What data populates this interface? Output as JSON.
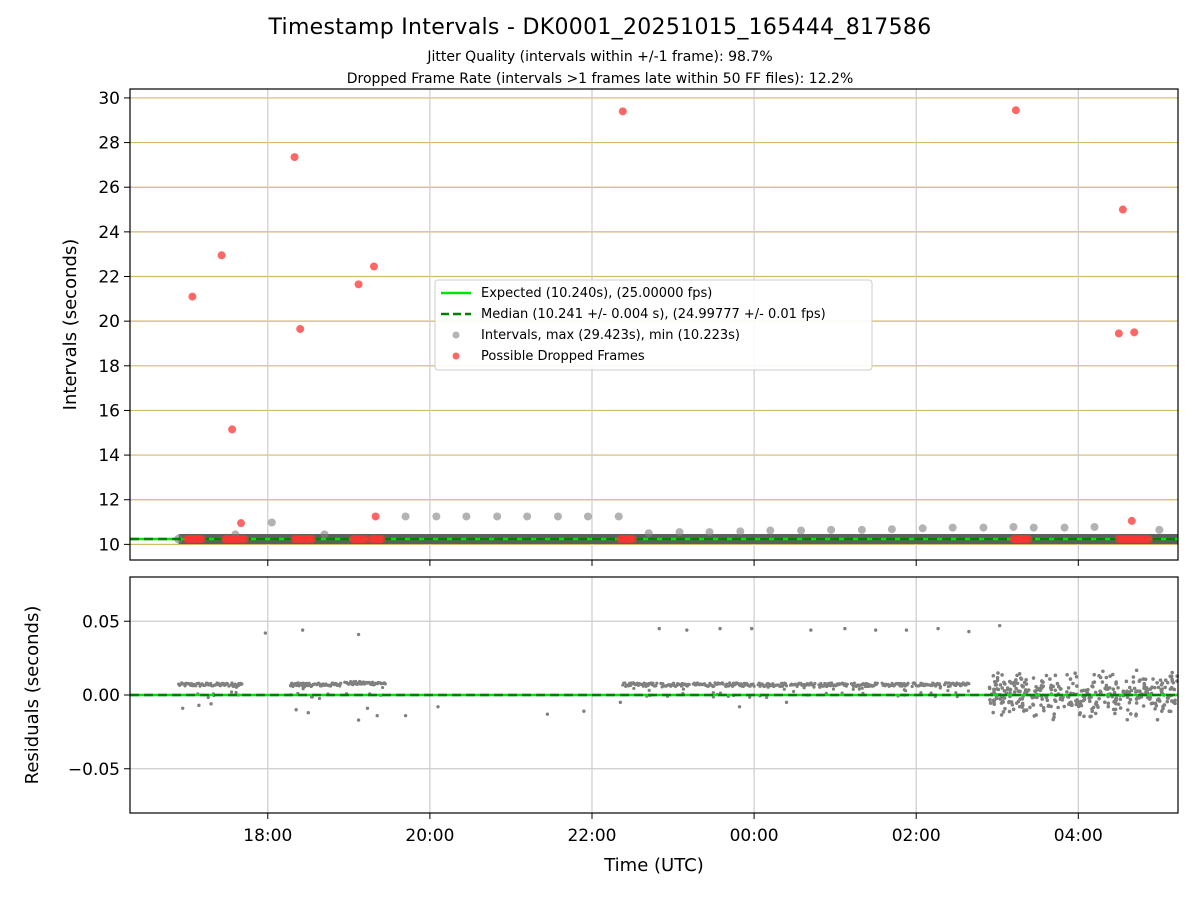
{
  "figure": {
    "title": "Timestamp Intervals - DK0001_20251015_165444_817586",
    "subtitle_jitter": "Jitter Quality (intervals within +/-1 frame): 98.7%",
    "subtitle_dropped": "Dropped Frame Rate (intervals >1 frames late within 50 FF files): 12.2%"
  },
  "colors": {
    "expected": "#00e600",
    "median": "#008000",
    "intervals": "#808080",
    "dropped": "#ff3333",
    "band": "#555555",
    "hgrid_top": "#d4b96a",
    "grid": "#cccccc"
  },
  "chart_data": [
    {
      "type": "scatter",
      "title": "",
      "xlabel": "",
      "ylabel": "Intervals (seconds)",
      "xlim_hours": [
        16.3,
        29.23
      ],
      "ylim": [
        9.3,
        30.4
      ],
      "x_tick_hours": [
        18,
        20,
        22,
        24,
        26,
        28
      ],
      "y_ticks": [
        10,
        12,
        14,
        16,
        18,
        20,
        22,
        24,
        26,
        28,
        30
      ],
      "y_tick_labels": [
        "10",
        "12",
        "14",
        "16",
        "18",
        "20",
        "22",
        "24",
        "26",
        "28",
        "30"
      ],
      "grid": true,
      "legend_location": "center",
      "lines": {
        "expected": {
          "label": "Expected (10.240s), (25.00000 fps)",
          "value": 10.24
        },
        "median": {
          "label": "Median (10.241 +/- 0.004 s), (24.99777 +/- 0.01 fps)",
          "value": 10.241
        }
      },
      "series": [
        {
          "name": "Intervals, max (29.423s), min (10.223s)",
          "typical_value": 10.24,
          "x_range_hours": [
            16.9,
            29.23
          ],
          "points": [
            {
              "x": 17.6,
              "y": 10.45
            },
            {
              "x": 18.05,
              "y": 10.98
            },
            {
              "x": 18.7,
              "y": 10.45
            },
            {
              "x": 19.7,
              "y": 11.25
            },
            {
              "x": 20.08,
              "y": 11.25
            },
            {
              "x": 20.45,
              "y": 11.25
            },
            {
              "x": 20.83,
              "y": 11.25
            },
            {
              "x": 21.2,
              "y": 11.25
            },
            {
              "x": 21.58,
              "y": 11.25
            },
            {
              "x": 21.95,
              "y": 11.25
            },
            {
              "x": 22.33,
              "y": 11.25
            },
            {
              "x": 22.7,
              "y": 10.5
            },
            {
              "x": 23.08,
              "y": 10.55
            },
            {
              "x": 23.45,
              "y": 10.55
            },
            {
              "x": 23.83,
              "y": 10.58
            },
            {
              "x": 24.2,
              "y": 10.62
            },
            {
              "x": 24.58,
              "y": 10.62
            },
            {
              "x": 24.95,
              "y": 10.65
            },
            {
              "x": 25.33,
              "y": 10.65
            },
            {
              "x": 25.7,
              "y": 10.68
            },
            {
              "x": 26.08,
              "y": 10.72
            },
            {
              "x": 26.45,
              "y": 10.75
            },
            {
              "x": 26.83,
              "y": 10.75
            },
            {
              "x": 27.2,
              "y": 10.78
            },
            {
              "x": 27.45,
              "y": 10.75
            },
            {
              "x": 27.83,
              "y": 10.75
            },
            {
              "x": 28.2,
              "y": 10.78
            },
            {
              "x": 29.0,
              "y": 10.65
            }
          ]
        },
        {
          "name": "Possible Dropped Frames",
          "points": [
            {
              "x": 17.07,
              "y": 21.1
            },
            {
              "x": 17.43,
              "y": 22.95
            },
            {
              "x": 17.56,
              "y": 15.15
            },
            {
              "x": 17.67,
              "y": 10.95
            },
            {
              "x": 18.33,
              "y": 27.35
            },
            {
              "x": 18.4,
              "y": 19.65
            },
            {
              "x": 19.12,
              "y": 21.65
            },
            {
              "x": 19.31,
              "y": 22.45
            },
            {
              "x": 19.33,
              "y": 11.25
            },
            {
              "x": 22.38,
              "y": 29.4
            },
            {
              "x": 27.23,
              "y": 29.45
            },
            {
              "x": 28.55,
              "y": 25.0
            },
            {
              "x": 28.5,
              "y": 19.45
            },
            {
              "x": 28.69,
              "y": 19.5
            },
            {
              "x": 28.66,
              "y": 11.05
            }
          ],
          "clusters_at_expected": [
            {
              "x_start": 17.0,
              "x_end": 17.2
            },
            {
              "x_start": 17.47,
              "x_end": 17.72
            },
            {
              "x_start": 18.33,
              "x_end": 18.55
            },
            {
              "x_start": 19.05,
              "x_end": 19.22
            },
            {
              "x_start": 19.28,
              "x_end": 19.42
            },
            {
              "x_start": 22.35,
              "x_end": 22.53
            },
            {
              "x_start": 27.2,
              "x_end": 27.4
            },
            {
              "x_start": 28.5,
              "x_end": 28.88
            }
          ]
        }
      ]
    },
    {
      "type": "scatter",
      "title": "",
      "xlabel": "Time (UTC)",
      "ylabel": "Residuals (seconds)",
      "xlim_hours": [
        16.3,
        29.23
      ],
      "ylim": [
        -0.08,
        0.08
      ],
      "x_tick_hours": [
        18,
        20,
        22,
        24,
        26,
        28
      ],
      "x_tick_labels": [
        "18:00",
        "20:00",
        "22:00",
        "00:00",
        "02:00",
        "04:00"
      ],
      "y_ticks": [
        0.05,
        0.0,
        -0.05
      ],
      "y_tick_labels": [
        "0.05",
        "0.00",
        "−0.05"
      ],
      "grid": true,
      "zero_line": 0.0,
      "outliers": [
        {
          "x": 17.97,
          "y": 0.042
        },
        {
          "x": 18.43,
          "y": 0.044
        },
        {
          "x": 19.12,
          "y": 0.041
        },
        {
          "x": 22.83,
          "y": 0.045
        },
        {
          "x": 23.17,
          "y": 0.044
        },
        {
          "x": 23.58,
          "y": 0.045
        },
        {
          "x": 23.97,
          "y": 0.045
        },
        {
          "x": 24.7,
          "y": 0.044
        },
        {
          "x": 25.12,
          "y": 0.045
        },
        {
          "x": 25.5,
          "y": 0.044
        },
        {
          "x": 25.88,
          "y": 0.044
        },
        {
          "x": 26.27,
          "y": 0.045
        },
        {
          "x": 26.65,
          "y": 0.043
        },
        {
          "x": 27.03,
          "y": 0.047
        },
        {
          "x": 16.95,
          "y": -0.009
        },
        {
          "x": 17.15,
          "y": -0.007
        },
        {
          "x": 17.3,
          "y": -0.006
        },
        {
          "x": 18.35,
          "y": -0.01
        },
        {
          "x": 18.5,
          "y": -0.012
        },
        {
          "x": 19.12,
          "y": -0.017
        },
        {
          "x": 19.23,
          "y": -0.009
        },
        {
          "x": 19.35,
          "y": -0.014
        },
        {
          "x": 19.7,
          "y": -0.014
        },
        {
          "x": 20.1,
          "y": -0.008
        },
        {
          "x": 21.45,
          "y": -0.013
        },
        {
          "x": 21.9,
          "y": -0.011
        },
        {
          "x": 22.35,
          "y": -0.005
        },
        {
          "x": 23.82,
          "y": -0.008
        },
        {
          "x": 24.4,
          "y": -0.005
        }
      ],
      "bands": [
        {
          "x_start": 16.9,
          "x_end": 17.52,
          "y": 0.007,
          "density": 16
        },
        {
          "x_start": 17.55,
          "x_end": 17.68,
          "y": 0.007,
          "density": 6
        },
        {
          "x_start": 18.28,
          "x_end": 18.5,
          "y": 0.007,
          "density": 10
        },
        {
          "x_start": 18.5,
          "x_end": 18.9,
          "y": 0.007,
          "density": 12
        },
        {
          "x_start": 18.95,
          "x_end": 19.45,
          "y": 0.008,
          "density": 14
        },
        {
          "x_start": 22.38,
          "x_end": 22.8,
          "y": 0.007,
          "density": 12
        },
        {
          "x_start": 22.85,
          "x_end": 23.2,
          "y": 0.007,
          "density": 10
        },
        {
          "x_start": 23.25,
          "x_end": 23.62,
          "y": 0.007,
          "density": 10
        },
        {
          "x_start": 23.65,
          "x_end": 24.0,
          "y": 0.007,
          "density": 10
        },
        {
          "x_start": 24.05,
          "x_end": 24.4,
          "y": 0.007,
          "density": 10
        },
        {
          "x_start": 24.45,
          "x_end": 24.75,
          "y": 0.007,
          "density": 9
        },
        {
          "x_start": 24.8,
          "x_end": 25.15,
          "y": 0.007,
          "density": 10
        },
        {
          "x_start": 25.2,
          "x_end": 25.52,
          "y": 0.007,
          "density": 9
        },
        {
          "x_start": 25.58,
          "x_end": 25.9,
          "y": 0.007,
          "density": 9
        },
        {
          "x_start": 25.95,
          "x_end": 26.3,
          "y": 0.007,
          "density": 10
        },
        {
          "x_start": 26.35,
          "x_end": 26.65,
          "y": 0.007,
          "density": 9
        }
      ],
      "noisy_region": {
        "x_start": 26.9,
        "x_end": 29.23,
        "y_min": -0.012,
        "y_max": 0.013,
        "count": 380
      }
    }
  ]
}
